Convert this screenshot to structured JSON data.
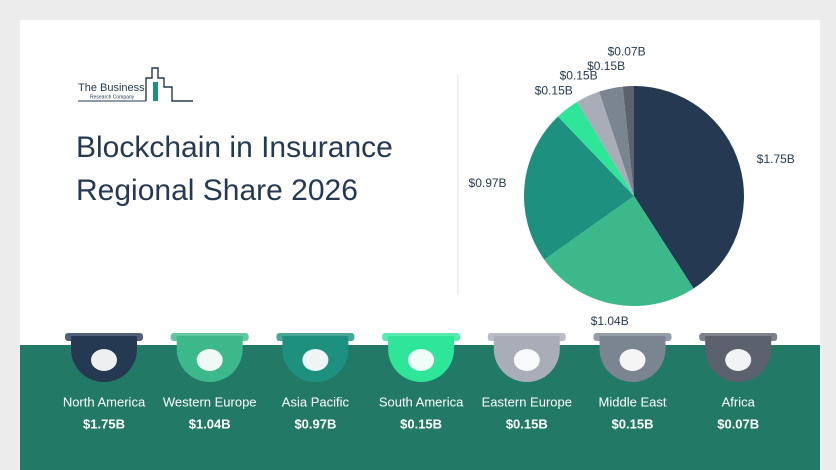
{
  "logo": {
    "line1": "The Business",
    "line2": "Research Company"
  },
  "chart_data": {
    "type": "pie",
    "title": "Blockchain in Insurance Regional Share 2026",
    "categories": [
      "North America",
      "Western Europe",
      "Asia Pacific",
      "South America",
      "Eastern Europe",
      "Middle East",
      "Africa"
    ],
    "values": [
      1.75,
      1.04,
      0.97,
      0.15,
      0.15,
      0.15,
      0.07
    ],
    "value_labels": [
      "$1.75B",
      "$1.04B",
      "$0.97B",
      "$0.15B",
      "$0.15B",
      "$0.15B",
      "$0.07B"
    ],
    "colors": [
      "#253a52",
      "#3bb98a",
      "#1e9080",
      "#2ee59a",
      "#a9adb8",
      "#7b8592",
      "#5b626e"
    ]
  }
}
